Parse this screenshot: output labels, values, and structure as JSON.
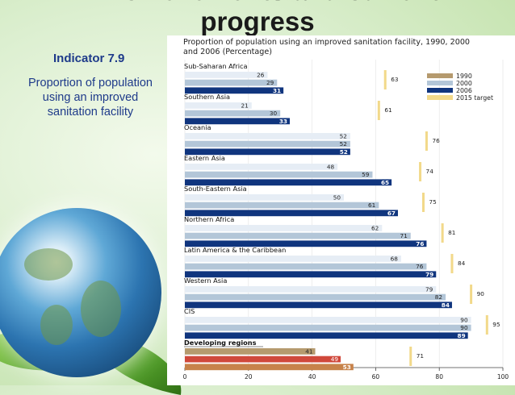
{
  "slide": {
    "title_line1": "II. Achievements and current",
    "title_line2": "progress",
    "indicator_label": "Indicator 7.9",
    "indicator_description": "Proportion of population using an improved sanitation facility"
  },
  "colors": {
    "y1990": "#b59a6e",
    "y2000": "#b3c6d8",
    "y2006": "#10357e",
    "target": "#f2d98a",
    "dev1990": "#b59a6e",
    "dev2000": "#d0483b",
    "dev2006": "#c7824a"
  },
  "chart_data": {
    "type": "bar",
    "orientation": "horizontal",
    "title": "Proportion of population using an improved sanitation facility, 1990, 2000 and 2006 (Percentage)",
    "title_line1": "Proportion of population using an improved sanitation facility, 1990, 2000",
    "title_line2": "and 2006 (Percentage)",
    "categories": [
      "Sub-Saharan Africa",
      "Southern Asia",
      "Oceania",
      "Eastern Asia",
      "South-Eastern Asia",
      "Northern Africa",
      "Latin America & the Caribbean",
      "Western Asia",
      "CIS",
      "Developing regions"
    ],
    "series": [
      {
        "name": "1990",
        "values": [
          26,
          21,
          52,
          48,
          50,
          62,
          68,
          79,
          90,
          41
        ]
      },
      {
        "name": "2000",
        "values": [
          29,
          30,
          52,
          59,
          61,
          71,
          76,
          82,
          90,
          49
        ]
      },
      {
        "name": "2006",
        "values": [
          31,
          33,
          52,
          65,
          67,
          76,
          79,
          84,
          89,
          53
        ]
      },
      {
        "name": "2015 target",
        "values": [
          63,
          61,
          76,
          74,
          75,
          81,
          84,
          90,
          95,
          71
        ]
      }
    ],
    "xlim": [
      0,
      100
    ],
    "xticks": [
      "0",
      "20",
      "40",
      "60",
      "80",
      "100"
    ],
    "legend_position": "top-right"
  }
}
